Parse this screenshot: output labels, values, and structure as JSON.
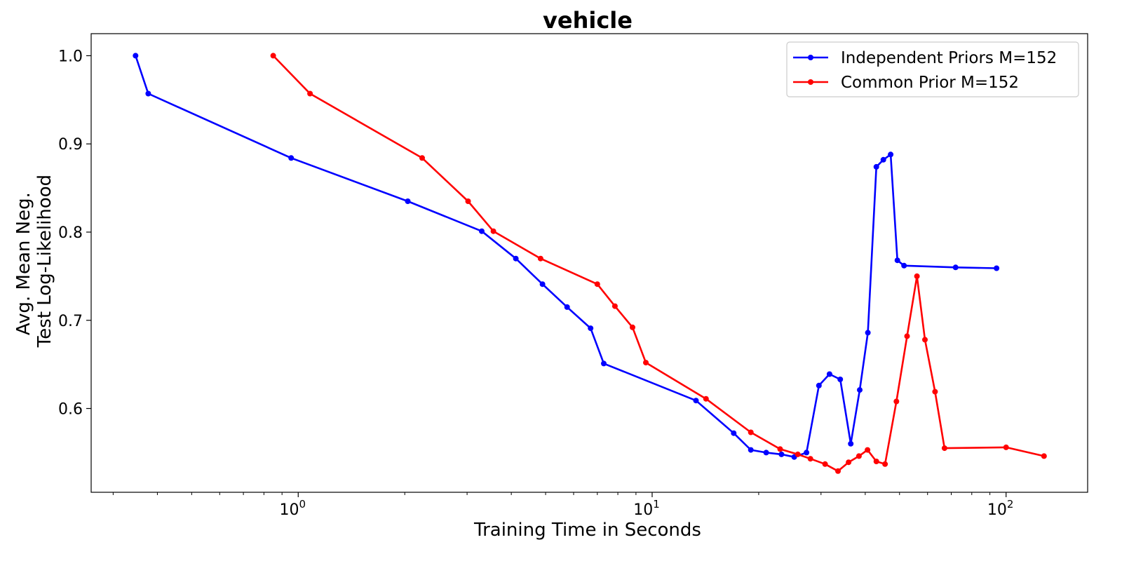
{
  "chart_data": {
    "type": "line",
    "title": "vehicle",
    "xlabel": "Training Time in Seconds",
    "ylabel": [
      "Avg. Mean Neg.",
      "Test Log-Likelihood"
    ],
    "xscale": "log",
    "xlim": [
      0.26,
      170
    ],
    "ylim": [
      0.505,
      1.025
    ],
    "xticks": [
      {
        "value": 1,
        "label": "10",
        "exp": "0"
      },
      {
        "value": 10,
        "label": "10",
        "exp": "1"
      },
      {
        "value": 100,
        "label": "10",
        "exp": "2"
      }
    ],
    "yticks": [
      {
        "value": 0.6,
        "label": "0.6"
      },
      {
        "value": 0.7,
        "label": "0.7"
      },
      {
        "value": 0.8,
        "label": "0.8"
      },
      {
        "value": 0.9,
        "label": "0.9"
      },
      {
        "value": 1.0,
        "label": "1.0"
      }
    ],
    "grid": false,
    "legend_position": "top-right",
    "series": [
      {
        "name": "Independent Priors M=152",
        "color": "#0000ff",
        "points": [
          [
            0.347,
            1.0
          ],
          [
            0.377,
            0.957
          ],
          [
            0.955,
            0.884
          ],
          [
            2.04,
            0.835
          ],
          [
            3.3,
            0.801
          ],
          [
            4.12,
            0.77
          ],
          [
            4.9,
            0.741
          ],
          [
            5.75,
            0.715
          ],
          [
            6.7,
            0.691
          ],
          [
            7.3,
            0.651
          ],
          [
            13.3,
            0.609
          ],
          [
            17.0,
            0.572
          ],
          [
            19.0,
            0.553
          ],
          [
            21.0,
            0.55
          ],
          [
            23.2,
            0.548
          ],
          [
            25.2,
            0.545
          ],
          [
            27.3,
            0.55
          ],
          [
            29.6,
            0.626
          ],
          [
            31.7,
            0.639
          ],
          [
            34.0,
            0.633
          ],
          [
            36.4,
            0.56
          ],
          [
            38.6,
            0.621
          ],
          [
            40.7,
            0.686
          ],
          [
            43.0,
            0.874
          ],
          [
            45.0,
            0.882
          ],
          [
            47.2,
            0.888
          ],
          [
            49.3,
            0.768
          ],
          [
            51.5,
            0.762
          ],
          [
            72.0,
            0.76
          ],
          [
            94.0,
            0.759
          ]
        ]
      },
      {
        "name": "Common Prior M=152",
        "color": "#ff0000",
        "points": [
          [
            0.85,
            1.0
          ],
          [
            1.08,
            0.957
          ],
          [
            2.24,
            0.884
          ],
          [
            3.02,
            0.835
          ],
          [
            3.56,
            0.801
          ],
          [
            4.84,
            0.77
          ],
          [
            7.0,
            0.741
          ],
          [
            7.85,
            0.716
          ],
          [
            8.8,
            0.692
          ],
          [
            9.6,
            0.652
          ],
          [
            14.2,
            0.611
          ],
          [
            19.0,
            0.573
          ],
          [
            23.0,
            0.554
          ],
          [
            25.8,
            0.548
          ],
          [
            28.0,
            0.543
          ],
          [
            30.8,
            0.537
          ],
          [
            33.5,
            0.529
          ],
          [
            35.9,
            0.539
          ],
          [
            38.4,
            0.546
          ],
          [
            40.6,
            0.553
          ],
          [
            43.0,
            0.54
          ],
          [
            45.5,
            0.537
          ],
          [
            49.0,
            0.608
          ],
          [
            52.5,
            0.682
          ],
          [
            56.0,
            0.75
          ],
          [
            59.0,
            0.678
          ],
          [
            63.0,
            0.619
          ],
          [
            67.0,
            0.555
          ],
          [
            100.0,
            0.556
          ],
          [
            128.0,
            0.546
          ]
        ]
      }
    ]
  }
}
